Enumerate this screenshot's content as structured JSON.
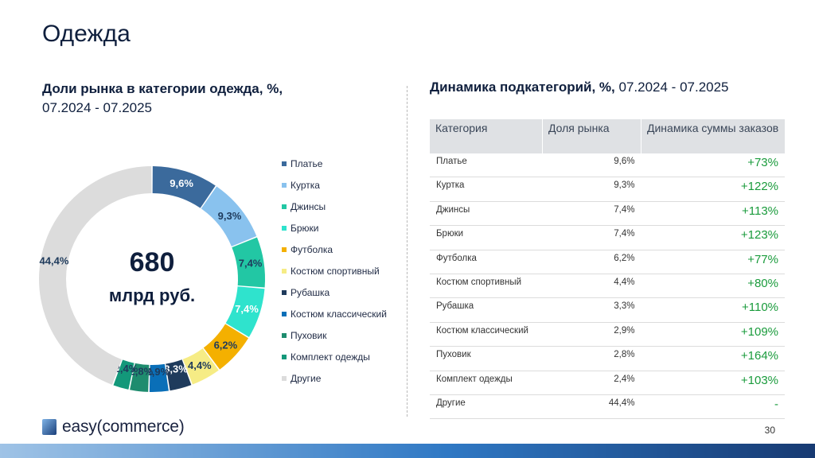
{
  "slide": {
    "title": "Одежда",
    "left_subtitle_bold": "Доли рынка в категории одежда, %,",
    "left_subtitle_period": "07.2024 - 07.2025",
    "right_subtitle_bold": "Динамика подкатегорий, %,",
    "right_subtitle_period": " 07.2024 - 07.2025",
    "page_number": "30",
    "logo_text": "easy(commerce)"
  },
  "chart_data": {
    "type": "pie",
    "variant": "donut",
    "center_value": "680",
    "center_unit": "млрд руб.",
    "legend_position": "right",
    "categories": [
      "Платье",
      "Куртка",
      "Джинсы",
      "Брюки",
      "Футболка",
      "Костюм спортивный",
      "Рубашка",
      "Костюм классический",
      "Пуховик",
      "Комплект одежды",
      "Другие"
    ],
    "values": [
      9.6,
      9.3,
      7.4,
      7.4,
      6.2,
      4.4,
      3.3,
      2.9,
      2.8,
      2.4,
      44.4
    ],
    "labels": [
      "9,6%",
      "9,3%",
      "7,4%",
      "7,4%",
      "6,2%",
      "4,4%",
      "3,3%",
      "2,9%",
      "2,8%",
      "2,4%",
      "44,4%"
    ],
    "colors": [
      "#3b6a9c",
      "#89c2ee",
      "#22c7a4",
      "#2fe3cd",
      "#f4b000",
      "#f6ec85",
      "#1f3b5c",
      "#0a6fb8",
      "#1e8c6e",
      "#13987a",
      "#dcdcdc"
    ],
    "label_colors": [
      "#ffffff",
      "#1f3b5c",
      "#1f3b5c",
      "#ffffff",
      "#1f3b5c",
      "#1f3b5c",
      "#ffffff",
      "#1f3b5c",
      "#1f3b5c",
      "#1f3b5c",
      "#1f3b5c"
    ]
  },
  "table": {
    "headers": [
      "Категория",
      "Доля рынка",
      "Динамика суммы заказов"
    ],
    "rows": [
      {
        "category": "Платье",
        "share": "9,6%",
        "dynamics": "+73%"
      },
      {
        "category": "Куртка",
        "share": "9,3%",
        "dynamics": "+122%"
      },
      {
        "category": "Джинсы",
        "share": "7,4%",
        "dynamics": "+113%"
      },
      {
        "category": "Брюки",
        "share": "7,4%",
        "dynamics": "+123%"
      },
      {
        "category": "Футболка",
        "share": "6,2%",
        "dynamics": "+77%"
      },
      {
        "category": "Костюм спортивный",
        "share": "4,4%",
        "dynamics": "+80%"
      },
      {
        "category": "Рубашка",
        "share": "3,3%",
        "dynamics": "+110%"
      },
      {
        "category": "Костюм классический",
        "share": "2,9%",
        "dynamics": "+109%"
      },
      {
        "category": "Пуховик",
        "share": "2,8%",
        "dynamics": "+164%"
      },
      {
        "category": "Комплект одежды",
        "share": "2,4%",
        "dynamics": "+103%"
      },
      {
        "category": "Другие",
        "share": "44,4%",
        "dynamics": "-"
      }
    ]
  }
}
